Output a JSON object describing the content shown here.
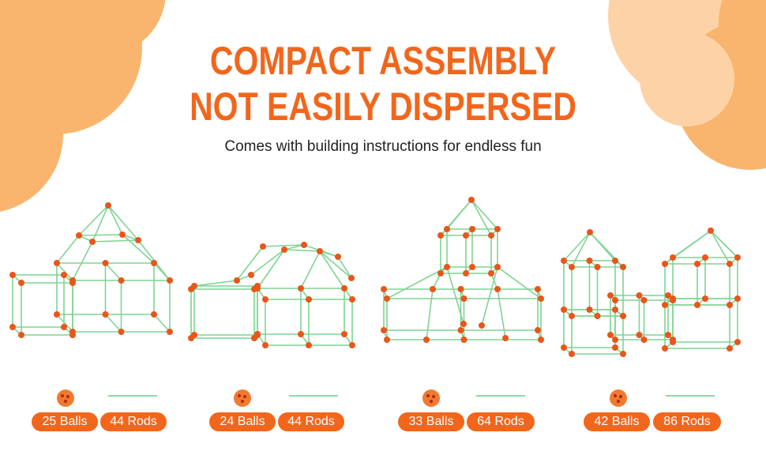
{
  "headline": [
    "COMPACT ASSEMBLY",
    "NOT EASILY DISPERSED"
  ],
  "subtitle": "Comes with building instructions for endless fun",
  "colors": {
    "accent": "#f2661c",
    "rod": "#7fd492",
    "ball": "#e8561a",
    "blob_dark": "#f9b56e",
    "blob_light": "#fdd2a6"
  },
  "kits": [
    {
      "balls": "25 Balls",
      "rods": "44 Rods"
    },
    {
      "balls": "24 Balls",
      "rods": "44 Rods"
    },
    {
      "balls": "33 Balls",
      "rods": "64 Rods"
    },
    {
      "balls": "42 Balls",
      "rods": "86 Rods"
    }
  ]
}
